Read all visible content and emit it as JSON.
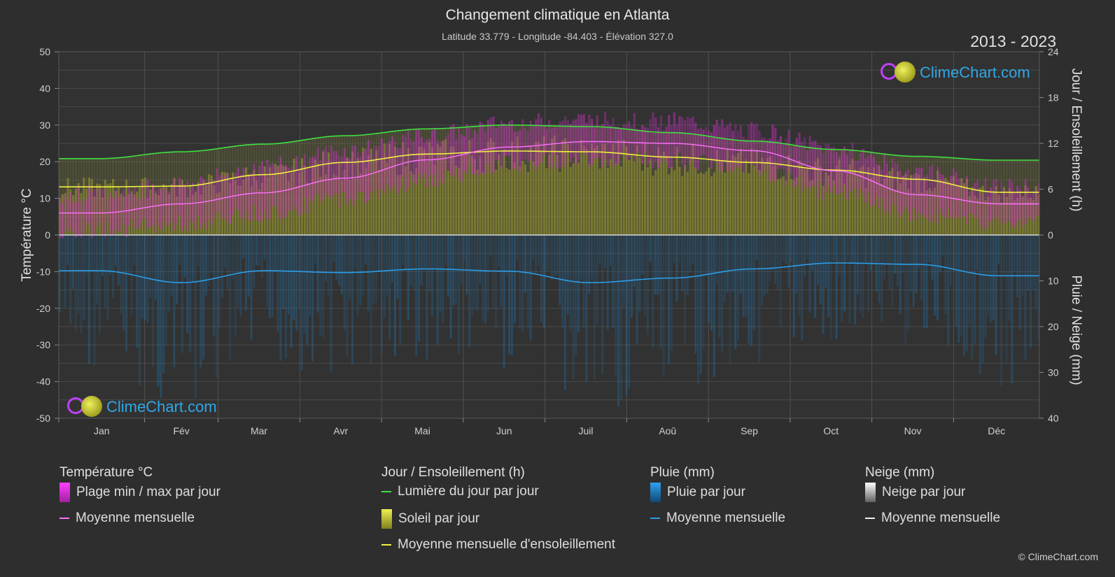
{
  "header": {
    "title": "Changement climatique en Atlanta",
    "subtitle": "Latitude 33.779 - Longitude -84.403 - Élévation 327.0",
    "years": "2013 - 2023"
  },
  "brand": {
    "logo_text": "ClimeChart.com",
    "copyright": "© ClimeChart.com"
  },
  "axes": {
    "left_label": "Température °C",
    "right_top_label": "Jour / Ensoleillement (h)",
    "right_bottom_label": "Pluie / Neige (mm)",
    "left_ticks": [
      50,
      40,
      30,
      20,
      10,
      0,
      -10,
      -20,
      -30,
      -40,
      -50
    ],
    "right_top_ticks": [
      24,
      18,
      12,
      6,
      0
    ],
    "right_bottom_ticks": [
      10,
      20,
      30,
      40
    ]
  },
  "legend": {
    "groups": [
      {
        "title": "Température °C",
        "items": [
          {
            "label": "Plage min / max par jour",
            "kind": "box",
            "color": "#e030e0"
          },
          {
            "label": "Moyenne mensuelle",
            "kind": "line",
            "color": "#ff70ff"
          }
        ]
      },
      {
        "title": "Jour / Ensoleillement (h)",
        "items": [
          {
            "label": "Lumière du jour par jour",
            "kind": "line",
            "color": "#40e040"
          },
          {
            "label": "Soleil par jour",
            "kind": "box",
            "color": "#d8d840"
          },
          {
            "label": "Moyenne mensuelle d'ensoleillement",
            "kind": "line",
            "color": "#f0f040"
          }
        ]
      },
      {
        "title": "Pluie (mm)",
        "items": [
          {
            "label": "Pluie par jour",
            "kind": "box",
            "color": "#2090e0"
          },
          {
            "label": "Moyenne mensuelle",
            "kind": "line",
            "color": "#2a9de8"
          }
        ]
      },
      {
        "title": "Neige (mm)",
        "items": [
          {
            "label": "Neige par jour",
            "kind": "box",
            "color": "#e0e0e0"
          },
          {
            "label": "Moyenne mensuelle",
            "kind": "line",
            "color": "#f0f0f0"
          }
        ]
      }
    ]
  },
  "chart_data": {
    "type": "line",
    "categories": [
      "Jan",
      "Fév",
      "Mar",
      "Avr",
      "Mai",
      "Jun",
      "Juil",
      "Aoû",
      "Sep",
      "Oct",
      "Nov",
      "Déc"
    ],
    "temp_ylim": [
      -50,
      50
    ],
    "sun_ylim": [
      0,
      24
    ],
    "precip_ylim": [
      0,
      40
    ],
    "series": [
      {
        "name": "Lumière du jour par jour",
        "axis": "hours",
        "color": "#40e040",
        "values": [
          10.0,
          10.9,
          11.9,
          13.0,
          13.9,
          14.4,
          14.2,
          13.4,
          12.3,
          11.2,
          10.3,
          9.8
        ]
      },
      {
        "name": "Moyenne mensuelle d'ensoleillement",
        "axis": "hours",
        "color": "#f0f040",
        "values": [
          6.3,
          6.4,
          7.9,
          9.5,
          10.6,
          11.0,
          10.9,
          10.2,
          9.5,
          8.5,
          7.3,
          5.6
        ]
      },
      {
        "name": "Moyenne mensuelle",
        "axis": "temp",
        "color": "#ff70ff",
        "values": [
          6.0,
          8.5,
          11.5,
          15.5,
          20.5,
          24.0,
          25.5,
          25.0,
          23.0,
          17.5,
          11.0,
          8.5
        ]
      },
      {
        "name": "Plage max",
        "axis": "temp",
        "color": "#e030e0",
        "values": [
          11.0,
          14.0,
          18.5,
          23.0,
          27.0,
          30.5,
          31.5,
          31.0,
          28.5,
          23.5,
          17.5,
          13.0
        ]
      },
      {
        "name": "Plage min",
        "axis": "temp",
        "color": "#e030e0",
        "values": [
          1.5,
          3.0,
          6.0,
          10.0,
          15.0,
          19.5,
          21.0,
          20.5,
          17.5,
          11.5,
          5.5,
          3.0
        ]
      },
      {
        "name": "Pluie moyenne mensuelle",
        "axis": "precip",
        "color": "#2a9de8",
        "values": [
          7.8,
          10.4,
          7.8,
          8.2,
          7.4,
          7.9,
          10.4,
          9.4,
          7.4,
          6.1,
          6.4,
          8.9
        ]
      }
    ]
  }
}
